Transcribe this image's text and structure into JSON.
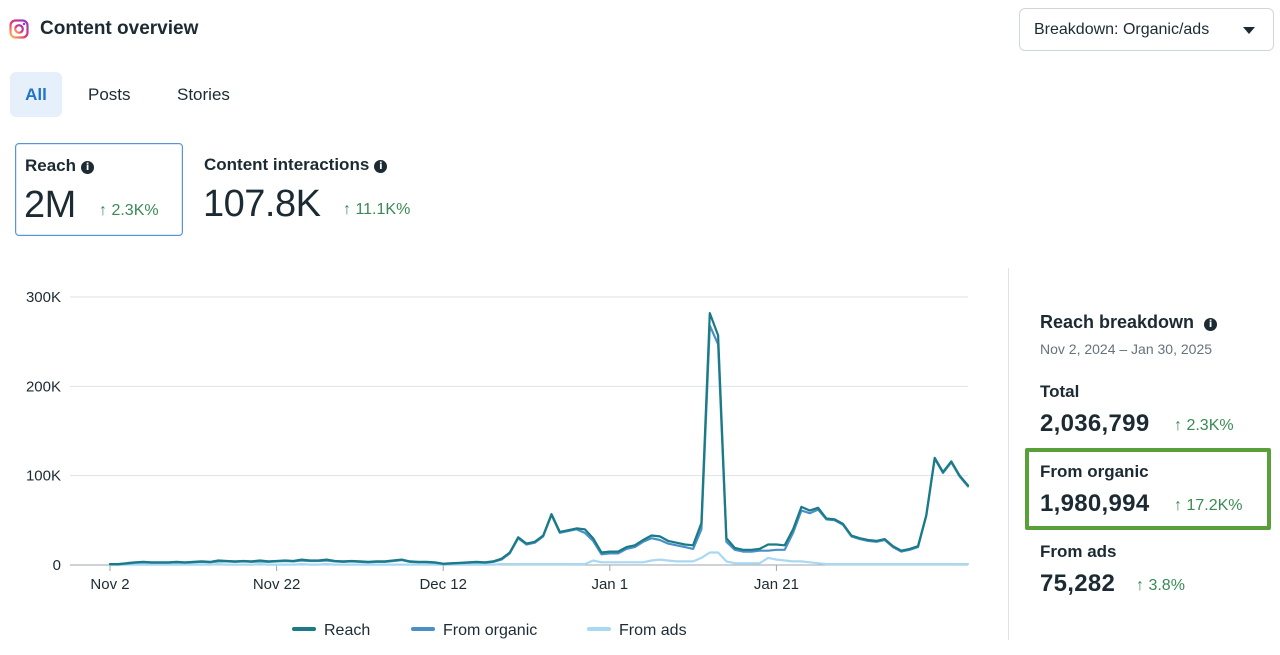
{
  "header": {
    "title": "Content overview",
    "logo_icon": "instagram-icon",
    "breakdown_dropdown": "Breakdown: Organic/ads"
  },
  "tabs": [
    {
      "label": "All",
      "active": true
    },
    {
      "label": "Posts",
      "active": false
    },
    {
      "label": "Stories",
      "active": false
    }
  ],
  "metrics": {
    "reach": {
      "title": "Reach",
      "value": "2M",
      "delta": "↑ 2.3K%",
      "selected": true
    },
    "interactions": {
      "title": "Content interactions",
      "value": "107.8K",
      "delta": "↑ 11.1K%"
    }
  },
  "breakdown": {
    "title": "Reach breakdown",
    "date_range": "Nov 2, 2024 – Jan 30, 2025",
    "total": {
      "label": "Total",
      "value": "2,036,799",
      "delta": "↑ 2.3K%"
    },
    "organic": {
      "label": "From organic",
      "value": "1,980,994",
      "delta": "↑ 17.2K%"
    },
    "ads": {
      "label": "From ads",
      "value": "75,282",
      "delta": "↑ 3.8%"
    }
  },
  "colors": {
    "reach": "#1a7a85",
    "organic": "#4a90c8",
    "ads": "#a9d8f2",
    "delta_positive": "#3a8a55",
    "highlight": "#5aa03a"
  },
  "chart_data": {
    "type": "line",
    "x_start": "Nov 2",
    "x_end": "Jan 30",
    "x_tick_labels": [
      "Nov 2",
      "Nov 22",
      "Dec 12",
      "Jan 1",
      "Jan 21"
    ],
    "y_tick_labels": [
      "0",
      "100K",
      "200K",
      "300K"
    ],
    "ylim": [
      0,
      300000
    ],
    "grid": true,
    "legend_position": "bottom",
    "series": [
      {
        "name": "Reach",
        "color": "#1a7a85",
        "values": [
          1000,
          1000,
          2000,
          3000,
          3500,
          3000,
          3000,
          3000,
          3500,
          3000,
          3500,
          4000,
          3500,
          5000,
          4500,
          4000,
          4500,
          4000,
          5000,
          4000,
          4500,
          5000,
          4500,
          6000,
          5000,
          5000,
          6000,
          4500,
          4000,
          4500,
          4000,
          3500,
          4000,
          4000,
          5000,
          6000,
          4000,
          3500,
          3500,
          3000,
          1500,
          2000,
          2500,
          3000,
          3500,
          3000,
          4000,
          7000,
          14000,
          31000,
          24000,
          26000,
          33000,
          57000,
          37000,
          39000,
          41000,
          40000,
          30000,
          14000,
          15000,
          15000,
          20000,
          22000,
          28000,
          33000,
          32000,
          27000,
          25000,
          23000,
          22000,
          47000,
          282000,
          257000,
          30000,
          19000,
          17000,
          17000,
          18000,
          23000,
          23000,
          22000,
          40000,
          65000,
          61000,
          64000,
          52000,
          51000,
          46000,
          33000,
          30000,
          28000,
          27000,
          29000,
          21000,
          16000,
          18000,
          21000,
          56000,
          120000,
          104000,
          116000,
          100000,
          89000
        ]
      },
      {
        "name": "From organic",
        "color": "#4a90c8",
        "values": [
          1000,
          1000,
          1500,
          2500,
          3000,
          2500,
          2500,
          2500,
          3000,
          2500,
          3000,
          3500,
          3000,
          4000,
          4000,
          3500,
          4000,
          3500,
          4000,
          3500,
          4000,
          4500,
          4000,
          5000,
          4500,
          4500,
          5000,
          4000,
          3500,
          4000,
          3500,
          3000,
          3500,
          3500,
          4500,
          5500,
          3500,
          3000,
          3000,
          2500,
          1000,
          1500,
          2000,
          2500,
          3000,
          2500,
          3500,
          6000,
          13000,
          30000,
          23000,
          25000,
          32000,
          56000,
          36000,
          38000,
          40000,
          36000,
          27000,
          12000,
          13000,
          13000,
          18000,
          20000,
          26000,
          30000,
          28000,
          24000,
          22000,
          20000,
          18000,
          40000,
          268000,
          247000,
          26000,
          17000,
          15000,
          15000,
          16000,
          16000,
          17000,
          17000,
          36000,
          61000,
          58000,
          62000,
          51000,
          50000,
          45000,
          32000,
          29000,
          27000,
          26000,
          28000,
          20000,
          15000,
          17000,
          20000,
          55000,
          119000,
          103000,
          115000,
          99000,
          88000
        ]
      },
      {
        "name": "From ads",
        "color": "#a9d8f2",
        "values": [
          0,
          0,
          500,
          500,
          500,
          500,
          500,
          500,
          500,
          500,
          500,
          500,
          500,
          1000,
          500,
          500,
          500,
          500,
          1000,
          500,
          500,
          500,
          500,
          1000,
          500,
          500,
          1000,
          500,
          500,
          500,
          500,
          500,
          500,
          500,
          500,
          500,
          500,
          500,
          500,
          500,
          500,
          500,
          500,
          500,
          500,
          500,
          500,
          1000,
          1000,
          1000,
          1000,
          1000,
          1000,
          1000,
          1000,
          1000,
          1000,
          1000,
          5000,
          3000,
          3000,
          3000,
          3000,
          3000,
          3000,
          5000,
          6000,
          5000,
          4000,
          4000,
          4000,
          8000,
          14000,
          14000,
          4000,
          2000,
          2000,
          2000,
          2000,
          8000,
          6000,
          5000,
          4000,
          4000,
          3000,
          2000,
          1000,
          1000,
          1000,
          1000,
          1000,
          1000,
          1000,
          1000,
          1000,
          1000,
          1000,
          1000,
          1000,
          1000,
          1000,
          1000,
          1000,
          1000
        ]
      }
    ]
  }
}
